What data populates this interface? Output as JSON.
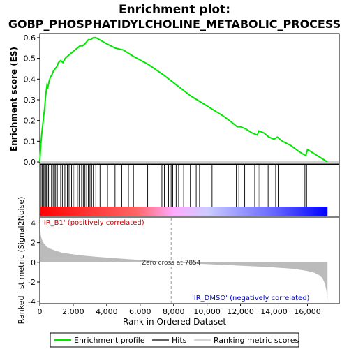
{
  "chart_data": {
    "type": "line",
    "title": "Enrichment plot:",
    "subtitle": "GOBP_PHOSPHATIDYLCHOLINE_METABOLIC_PROCESS",
    "xlabel": "Rank in Ordered Dataset",
    "es_panel": {
      "ylabel": "Enrichment score (ES)",
      "ylim": [
        -0.01,
        0.62
      ],
      "yticks": [
        0.0,
        0.1,
        0.2,
        0.3,
        0.4,
        0.5,
        0.6
      ],
      "xlim": [
        0,
        17900
      ],
      "color": "#00e600",
      "series": {
        "name": "Enrichment profile",
        "x": [
          0,
          60,
          120,
          180,
          230,
          290,
          330,
          380,
          430,
          480,
          560,
          640,
          720,
          820,
          920,
          1020,
          1120,
          1250,
          1380,
          1520,
          1650,
          1800,
          1950,
          2100,
          2250,
          2400,
          2550,
          2700,
          2800,
          2900,
          3050,
          3200,
          3350,
          4000,
          4500,
          5000,
          5600,
          6500,
          7400,
          8200,
          9000,
          9800,
          10400,
          11000,
          11500,
          11800,
          12000,
          12300,
          12700,
          13000,
          13100,
          13400,
          13700,
          14000,
          14200,
          14500,
          15000,
          15500,
          15900,
          16000,
          17200
        ],
        "y": [
          0.0,
          0.08,
          0.14,
          0.18,
          0.22,
          0.26,
          0.3,
          0.34,
          0.37,
          0.36,
          0.39,
          0.41,
          0.42,
          0.44,
          0.45,
          0.46,
          0.48,
          0.49,
          0.48,
          0.5,
          0.51,
          0.52,
          0.53,
          0.54,
          0.55,
          0.56,
          0.56,
          0.57,
          0.58,
          0.59,
          0.59,
          0.6,
          0.6,
          0.57,
          0.55,
          0.54,
          0.51,
          0.47,
          0.42,
          0.37,
          0.32,
          0.28,
          0.25,
          0.22,
          0.19,
          0.17,
          0.17,
          0.16,
          0.14,
          0.13,
          0.15,
          0.14,
          0.12,
          0.11,
          0.12,
          0.1,
          0.08,
          0.05,
          0.03,
          0.06,
          0.0
        ]
      }
    },
    "hits_panel": {
      "hits": [
        80,
        150,
        220,
        290,
        340,
        390,
        450,
        520,
        600,
        700,
        800,
        880,
        950,
        1050,
        1150,
        1250,
        1350,
        1500,
        1650,
        1750,
        1900,
        2000,
        2100,
        2250,
        2350,
        2500,
        2600,
        2700,
        2800,
        2900,
        3000,
        3100,
        3200,
        3350,
        3600,
        4050,
        4500,
        4900,
        5300,
        5600,
        6450,
        7300,
        7450,
        7700,
        7850,
        7950,
        8150,
        8300,
        8600,
        9000,
        9350,
        9550,
        10300,
        11750,
        11900,
        12250,
        12850,
        13050,
        13150,
        13650,
        14100,
        14250,
        15850,
        15950
      ],
      "colorbar": {
        "stops": [
          "#ff0000",
          "#ff6666",
          "#ffaaff",
          "#ccccff",
          "#6666ff",
          "#0000ff"
        ],
        "positions": [
          0,
          5800,
          8000,
          10000,
          14000,
          17200
        ]
      }
    },
    "metric_panel": {
      "ylabel": "Ranked list metric (Signal2Noise)",
      "ylim": [
        -4.2,
        4.6
      ],
      "yticks": [
        -4,
        -2,
        0,
        2,
        4
      ],
      "xticks": [
        0,
        2000,
        4000,
        6000,
        8000,
        10000,
        12000,
        14000,
        16000
      ],
      "xticklabels": [
        "0",
        "2,000",
        "4,000",
        "6,000",
        "8,000",
        "10,000",
        "12,000",
        "14,000",
        "16,000"
      ],
      "fill_color": "#bbbbbb",
      "x": [
        0,
        30,
        80,
        150,
        250,
        400,
        600,
        900,
        1300,
        1800,
        2500,
        3500,
        4500,
        5500,
        6500,
        7000,
        7854,
        9000,
        10000,
        11000,
        12000,
        13000,
        14000,
        15000,
        15500,
        16000,
        16400,
        16700,
        16900,
        17050,
        17150,
        17200
      ],
      "y": [
        4.2,
        3.2,
        2.6,
        2.2,
        1.9,
        1.6,
        1.4,
        1.2,
        1.0,
        0.85,
        0.7,
        0.55,
        0.42,
        0.3,
        0.18,
        0.1,
        0.0,
        -0.1,
        -0.18,
        -0.26,
        -0.34,
        -0.42,
        -0.52,
        -0.64,
        -0.74,
        -0.88,
        -1.05,
        -1.3,
        -1.6,
        -2.2,
        -3.0,
        -3.9
      ],
      "zero_cross_label": "Zero cross at 7854",
      "zero_cross": 7854,
      "pos_label": "'IR_B1' (positively correlated)",
      "neg_label": "'IR_DMSO' (negatively correlated)",
      "pos_color": "#cc0000",
      "neg_color": "#0000cc"
    },
    "legend": {
      "placement": "bottom",
      "items": [
        {
          "label": "Enrichment profile",
          "color": "#00e600"
        },
        {
          "label": "Hits",
          "color": "#000000"
        },
        {
          "label": "Ranking metric scores",
          "color": "#bbbbbb"
        }
      ]
    }
  }
}
